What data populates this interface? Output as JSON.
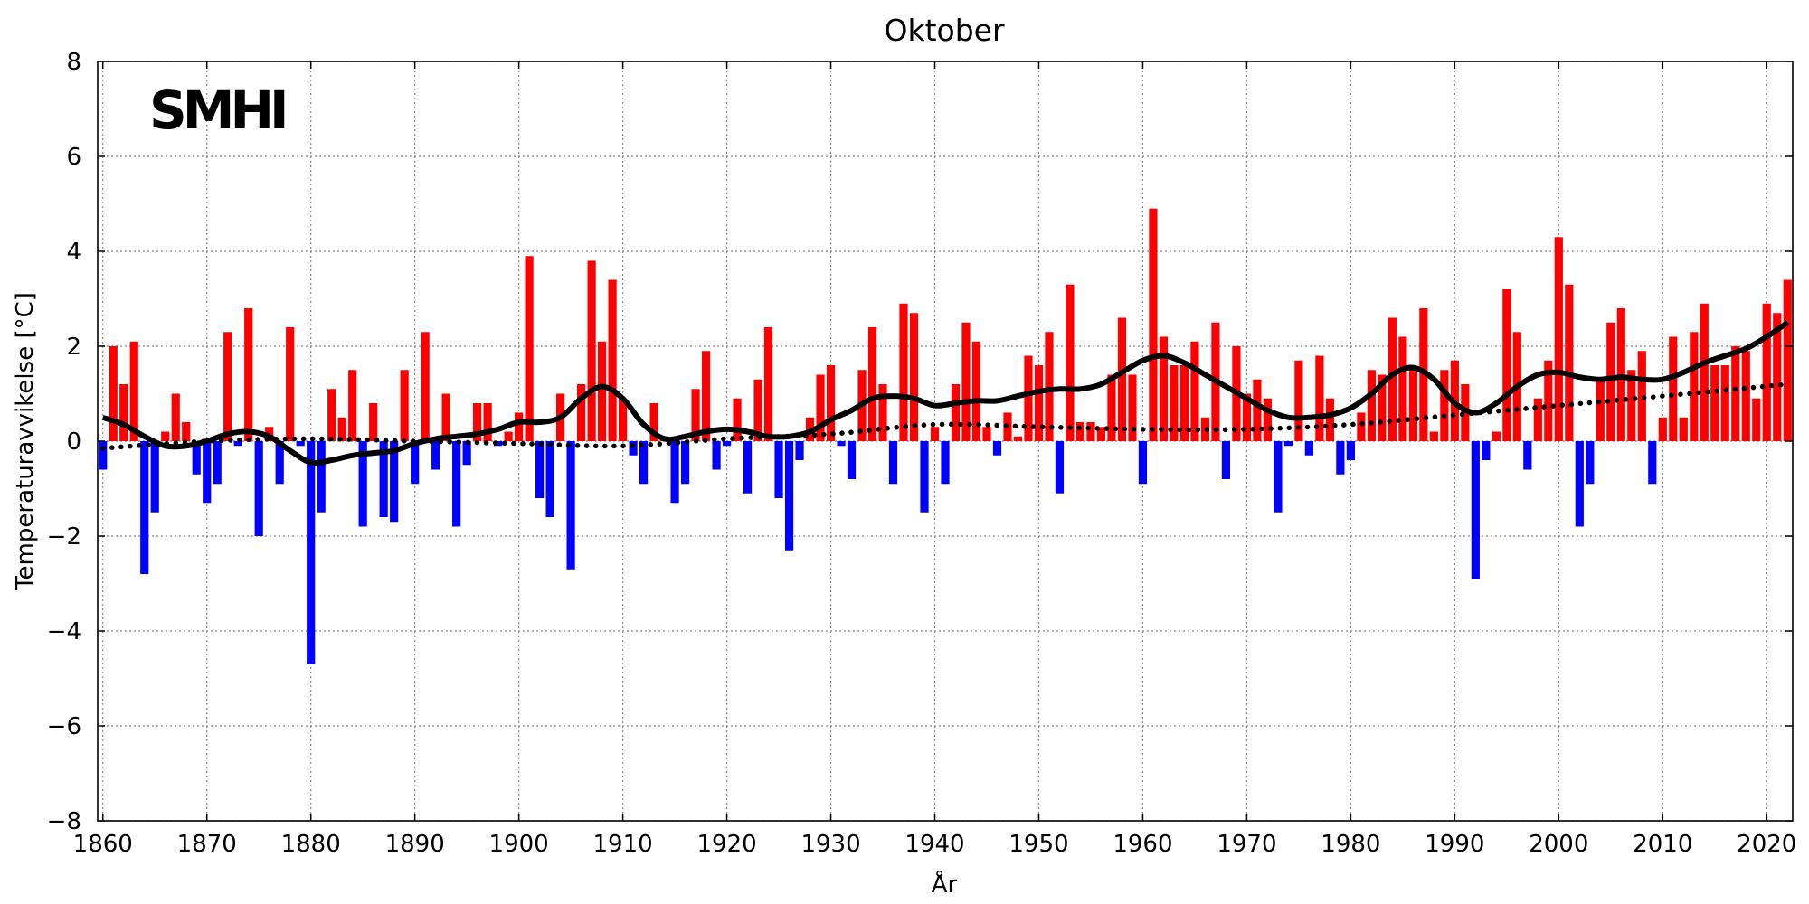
{
  "chart_data": {
    "type": "bar",
    "title": "Oktober",
    "xlabel": "År",
    "ylabel": "Temperaturavvikelse [°C]",
    "logo": "SMHI",
    "xlim": [
      1859.5,
      2022.5
    ],
    "ylim": [
      -8,
      8
    ],
    "x_ticks": [
      1860,
      1870,
      1880,
      1890,
      1900,
      1910,
      1920,
      1930,
      1940,
      1950,
      1960,
      1970,
      1980,
      1990,
      2000,
      2010,
      2020
    ],
    "y_ticks": [
      -8,
      -6,
      -4,
      -2,
      0,
      2,
      4,
      6,
      8
    ],
    "y_tick_labels": [
      "−8",
      "−6",
      "−4",
      "−2",
      "0",
      "2",
      "4",
      "6",
      "8"
    ],
    "grid": true,
    "colors": {
      "positive": "#ff0000",
      "negative": "#0000ff",
      "lines": "#000000"
    },
    "start_year": 1860,
    "values": [
      -0.6,
      2.0,
      1.2,
      2.1,
      -2.8,
      -1.5,
      0.2,
      1.0,
      0.4,
      -0.7,
      -1.3,
      -0.9,
      2.3,
      -0.1,
      2.8,
      -2.0,
      0.3,
      -0.9,
      2.4,
      -0.1,
      -4.7,
      -1.5,
      1.1,
      0.5,
      1.5,
      -1.8,
      0.8,
      -1.6,
      -1.7,
      1.5,
      -0.9,
      2.3,
      -0.6,
      1.0,
      -1.8,
      -0.5,
      0.8,
      0.8,
      -0.1,
      0.2,
      0.6,
      3.9,
      -1.2,
      -1.6,
      1.0,
      -2.7,
      1.2,
      3.8,
      2.1,
      3.4,
      0.9,
      -0.3,
      -0.9,
      0.8,
      0.1,
      -1.3,
      -0.9,
      1.1,
      1.9,
      -0.6,
      -0.1,
      0.9,
      -1.1,
      1.3,
      2.4,
      -1.2,
      -2.3,
      -0.4,
      0.5,
      1.4,
      1.6,
      -0.1,
      -0.8,
      1.5,
      2.4,
      1.2,
      -0.9,
      2.9,
      2.7,
      -1.5,
      0.3,
      -0.9,
      1.2,
      2.5,
      2.1,
      0.3,
      -0.3,
      0.6,
      0.1,
      1.8,
      1.6,
      2.3,
      -1.1,
      3.3,
      0.4,
      0.4,
      0.3,
      1.4,
      2.6,
      1.4,
      -0.9,
      4.9,
      2.2,
      1.6,
      1.6,
      2.1,
      0.5,
      2.5,
      -0.8,
      2.0,
      1.0,
      1.3,
      0.9,
      -1.5,
      -0.1,
      1.7,
      -0.3,
      1.8,
      0.9,
      -0.7,
      -0.4,
      0.6,
      1.5,
      1.4,
      2.6,
      2.2,
      1.5,
      2.8,
      0.2,
      1.5,
      1.7,
      1.2,
      -2.9,
      -0.4,
      0.2,
      3.2,
      2.3,
      -0.6,
      0.9,
      1.7,
      4.3,
      3.3,
      -1.8,
      -0.9,
      1.3,
      2.5,
      2.8,
      1.5,
      1.9,
      -0.9,
      0.5,
      2.2,
      0.5,
      2.3,
      2.9,
      1.6,
      1.6,
      2.0,
      1.9,
      0.9,
      2.9,
      2.7,
      3.4
    ],
    "series": [
      {
        "name": "smoothed",
        "style": "solid",
        "x": [
          1860,
          1862,
          1864,
          1866,
          1868,
          1870,
          1872,
          1874,
          1876,
          1878,
          1880,
          1882,
          1884,
          1886,
          1888,
          1890,
          1892,
          1894,
          1896,
          1898,
          1900,
          1902,
          1904,
          1906,
          1908,
          1910,
          1912,
          1914,
          1916,
          1918,
          1920,
          1922,
          1924,
          1926,
          1928,
          1930,
          1932,
          1934,
          1936,
          1938,
          1940,
          1942,
          1944,
          1946,
          1948,
          1950,
          1952,
          1954,
          1956,
          1958,
          1960,
          1962,
          1964,
          1966,
          1968,
          1970,
          1972,
          1974,
          1976,
          1978,
          1980,
          1982,
          1984,
          1986,
          1988,
          1990,
          1992,
          1994,
          1996,
          1998,
          2000,
          2002,
          2004,
          2006,
          2008,
          2010,
          2012,
          2014,
          2016,
          2018,
          2020,
          2022
        ],
        "y": [
          0.5,
          0.35,
          0.1,
          -0.1,
          -0.1,
          0.0,
          0.15,
          0.2,
          0.1,
          -0.2,
          -0.45,
          -0.4,
          -0.3,
          -0.25,
          -0.2,
          -0.05,
          0.05,
          0.1,
          0.15,
          0.25,
          0.4,
          0.4,
          0.5,
          0.9,
          1.15,
          0.9,
          0.35,
          0.05,
          0.1,
          0.2,
          0.25,
          0.2,
          0.1,
          0.1,
          0.2,
          0.45,
          0.65,
          0.9,
          0.95,
          0.9,
          0.75,
          0.8,
          0.85,
          0.85,
          0.95,
          1.05,
          1.1,
          1.1,
          1.2,
          1.45,
          1.7,
          1.8,
          1.65,
          1.4,
          1.15,
          0.9,
          0.65,
          0.5,
          0.5,
          0.55,
          0.7,
          1.0,
          1.4,
          1.55,
          1.3,
          0.8,
          0.6,
          0.8,
          1.15,
          1.4,
          1.45,
          1.35,
          1.3,
          1.35,
          1.3,
          1.3,
          1.45,
          1.65,
          1.8,
          1.95,
          2.2,
          2.5
        ]
      },
      {
        "name": "trend",
        "style": "dotted",
        "x": [
          1860,
          1870,
          1880,
          1890,
          1900,
          1910,
          1920,
          1930,
          1940,
          1950,
          1960,
          1970,
          1980,
          1990,
          2000,
          2010,
          2022
        ],
        "y": [
          -0.15,
          0.0,
          0.05,
          0.0,
          -0.05,
          -0.1,
          0.05,
          0.15,
          0.35,
          0.3,
          0.25,
          0.25,
          0.35,
          0.55,
          0.75,
          0.95,
          1.2
        ]
      }
    ]
  }
}
